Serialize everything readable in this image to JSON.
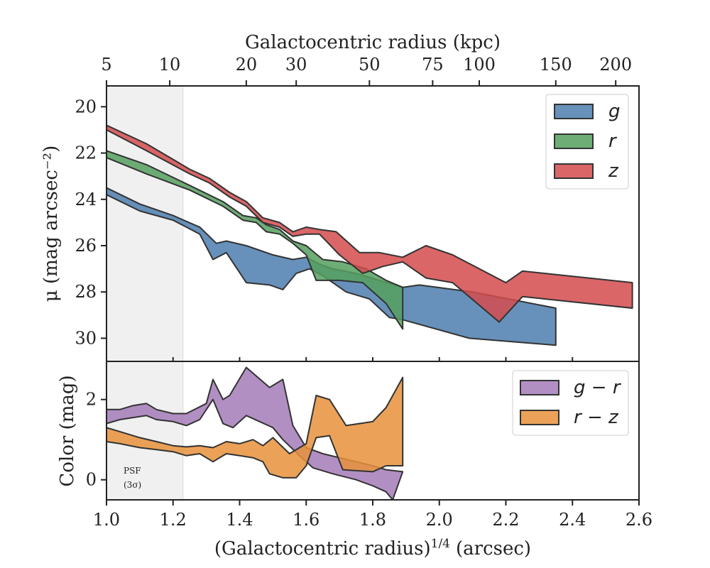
{
  "chart_data": [
    {
      "type": "area",
      "panel": "top",
      "ylabel": "μ (mag arcsec⁻²)",
      "top_xlabel": "Galactocentric radius (kpc)",
      "top_xticks": [
        {
          "label": "5",
          "x": 1.0
        },
        {
          "label": "10",
          "x": 1.19
        },
        {
          "label": "20",
          "x": 1.42
        },
        {
          "label": "30",
          "x": 1.57
        },
        {
          "label": "50",
          "x": 1.79
        },
        {
          "label": "75",
          "x": 1.98
        },
        {
          "label": "100",
          "x": 2.12
        },
        {
          "label": "150",
          "x": 2.35
        },
        {
          "label": "200",
          "x": 2.53
        }
      ],
      "xlim": [
        1.0,
        2.6
      ],
      "ylim": [
        31.0,
        19.1
      ],
      "yticks": [
        "20",
        "22",
        "24",
        "26",
        "28",
        "30"
      ],
      "ytick_values": [
        20,
        22,
        24,
        26,
        28,
        30
      ],
      "shaded_region": [
        1.0,
        1.23
      ],
      "legend_position": "top-right",
      "series": [
        {
          "name": "g",
          "color": "#4C7EAE",
          "upper": [
            [
              1.0,
              23.5
            ],
            [
              1.1,
              24.2
            ],
            [
              1.2,
              24.7
            ],
            [
              1.28,
              25.2
            ],
            [
              1.33,
              25.9
            ],
            [
              1.36,
              25.8
            ],
            [
              1.42,
              26.0
            ],
            [
              1.5,
              26.4
            ],
            [
              1.56,
              26.6
            ],
            [
              1.6,
              26.5
            ],
            [
              1.64,
              26.8
            ],
            [
              1.68,
              27.0
            ],
            [
              1.75,
              27.2
            ],
            [
              1.82,
              27.5
            ],
            [
              1.89,
              27.8
            ],
            [
              1.94,
              27.7
            ],
            [
              2.1,
              28.0
            ],
            [
              2.35,
              28.7
            ]
          ],
          "lower": [
            [
              1.0,
              23.8
            ],
            [
              1.1,
              24.5
            ],
            [
              1.2,
              24.9
            ],
            [
              1.28,
              25.5
            ],
            [
              1.32,
              26.6
            ],
            [
              1.36,
              26.3
            ],
            [
              1.42,
              27.6
            ],
            [
              1.49,
              27.7
            ],
            [
              1.53,
              27.9
            ],
            [
              1.57,
              27.2
            ],
            [
              1.61,
              27.0
            ],
            [
              1.65,
              27.3
            ],
            [
              1.68,
              27.6
            ],
            [
              1.72,
              28.0
            ],
            [
              1.79,
              28.3
            ],
            [
              1.85,
              29.1
            ],
            [
              1.89,
              29.2
            ],
            [
              2.09,
              30.0
            ],
            [
              2.35,
              30.3
            ]
          ]
        },
        {
          "name": "r",
          "color": "#55A05E",
          "upper": [
            [
              1.0,
              21.9
            ],
            [
              1.12,
              22.5
            ],
            [
              1.25,
              23.4
            ],
            [
              1.35,
              24.1
            ],
            [
              1.41,
              24.7
            ],
            [
              1.45,
              24.8
            ],
            [
              1.48,
              25.1
            ],
            [
              1.52,
              25.3
            ],
            [
              1.56,
              25.8
            ],
            [
              1.6,
              26.0
            ],
            [
              1.65,
              26.6
            ],
            [
              1.71,
              26.7
            ],
            [
              1.78,
              27.0
            ],
            [
              1.84,
              27.5
            ],
            [
              1.89,
              27.8
            ]
          ],
          "lower": [
            [
              1.0,
              22.2
            ],
            [
              1.12,
              22.9
            ],
            [
              1.25,
              23.6
            ],
            [
              1.35,
              24.3
            ],
            [
              1.41,
              24.9
            ],
            [
              1.45,
              25.0
            ],
            [
              1.48,
              25.4
            ],
            [
              1.52,
              25.5
            ],
            [
              1.56,
              25.9
            ],
            [
              1.6,
              26.4
            ],
            [
              1.63,
              27.5
            ],
            [
              1.7,
              27.5
            ],
            [
              1.77,
              27.6
            ],
            [
              1.84,
              28.5
            ],
            [
              1.89,
              29.6
            ]
          ]
        },
        {
          "name": "z",
          "color": "#D44B4E",
          "upper": [
            [
              1.0,
              20.8
            ],
            [
              1.12,
              21.6
            ],
            [
              1.25,
              22.7
            ],
            [
              1.31,
              23.1
            ],
            [
              1.37,
              23.7
            ],
            [
              1.42,
              24.1
            ],
            [
              1.47,
              24.8
            ],
            [
              1.52,
              25.0
            ],
            [
              1.56,
              25.4
            ],
            [
              1.6,
              25.2
            ],
            [
              1.64,
              25.3
            ],
            [
              1.69,
              25.4
            ],
            [
              1.76,
              26.3
            ],
            [
              1.82,
              26.3
            ],
            [
              1.89,
              26.5
            ],
            [
              1.96,
              26.0
            ],
            [
              2.04,
              26.4
            ],
            [
              2.2,
              27.6
            ],
            [
              2.25,
              27.1
            ],
            [
              2.58,
              27.6
            ]
          ],
          "lower": [
            [
              1.0,
              21.0
            ],
            [
              1.12,
              21.9
            ],
            [
              1.25,
              22.9
            ],
            [
              1.31,
              23.3
            ],
            [
              1.37,
              23.9
            ],
            [
              1.42,
              24.3
            ],
            [
              1.47,
              25.0
            ],
            [
              1.52,
              25.2
            ],
            [
              1.56,
              25.6
            ],
            [
              1.6,
              25.5
            ],
            [
              1.64,
              25.5
            ],
            [
              1.7,
              26.4
            ],
            [
              1.77,
              27.2
            ],
            [
              1.83,
              26.9
            ],
            [
              1.89,
              26.7
            ],
            [
              1.96,
              27.4
            ],
            [
              2.04,
              27.6
            ],
            [
              2.18,
              29.3
            ],
            [
              2.25,
              28.2
            ],
            [
              2.58,
              28.7
            ]
          ]
        }
      ]
    },
    {
      "type": "area",
      "panel": "bottom",
      "xlabel": "(Galactocentric radius)",
      "xlabel_sup": "1/4",
      "xlabel_suffix": "(arcsec)",
      "ylabel": "Color (mag)",
      "xlim": [
        1.0,
        2.6
      ],
      "ylim": [
        -0.5,
        2.95
      ],
      "xticks": [
        "1.0",
        "1.2",
        "1.4",
        "1.6",
        "1.8",
        "2.0",
        "2.2",
        "2.4",
        "2.6"
      ],
      "xtick_values": [
        1.0,
        1.2,
        1.4,
        1.6,
        1.8,
        2.0,
        2.2,
        2.4,
        2.6
      ],
      "yticks": [
        "0",
        "2"
      ],
      "ytick_values": [
        0,
        2
      ],
      "shaded_region": [
        1.0,
        1.23
      ],
      "annotation_line1": "PSF",
      "annotation_line2": "(3σ)",
      "legend_position": "top-right",
      "series": [
        {
          "name": "g − r",
          "color": "#A57BB8",
          "upper": [
            [
              1.0,
              1.75
            ],
            [
              1.04,
              1.75
            ],
            [
              1.08,
              1.85
            ],
            [
              1.12,
              1.9
            ],
            [
              1.15,
              1.75
            ],
            [
              1.2,
              1.65
            ],
            [
              1.24,
              1.65
            ],
            [
              1.3,
              1.9
            ],
            [
              1.32,
              2.5
            ],
            [
              1.35,
              2.0
            ],
            [
              1.37,
              2.1
            ],
            [
              1.42,
              2.8
            ],
            [
              1.49,
              2.3
            ],
            [
              1.53,
              2.5
            ],
            [
              1.56,
              1.35
            ],
            [
              1.6,
              0.8
            ],
            [
              1.65,
              0.65
            ],
            [
              1.7,
              0.55
            ],
            [
              1.75,
              0.45
            ],
            [
              1.8,
              0.35
            ],
            [
              1.84,
              0.25
            ],
            [
              1.89,
              0.2
            ]
          ],
          "lower": [
            [
              1.0,
              1.4
            ],
            [
              1.04,
              1.5
            ],
            [
              1.08,
              1.55
            ],
            [
              1.12,
              1.6
            ],
            [
              1.15,
              1.5
            ],
            [
              1.2,
              1.45
            ],
            [
              1.24,
              1.35
            ],
            [
              1.28,
              1.5
            ],
            [
              1.32,
              2.0
            ],
            [
              1.35,
              1.4
            ],
            [
              1.38,
              1.3
            ],
            [
              1.42,
              1.6
            ],
            [
              1.46,
              1.45
            ],
            [
              1.5,
              1.3
            ],
            [
              1.53,
              1.0
            ],
            [
              1.58,
              0.6
            ],
            [
              1.62,
              0.3
            ],
            [
              1.68,
              0.15
            ],
            [
              1.75,
              0.0
            ],
            [
              1.8,
              -0.15
            ],
            [
              1.84,
              -0.3
            ],
            [
              1.86,
              -0.5
            ]
          ]
        },
        {
          "name": "r − z",
          "color": "#E8923B",
          "upper": [
            [
              1.0,
              1.3
            ],
            [
              1.04,
              1.2
            ],
            [
              1.1,
              1.05
            ],
            [
              1.15,
              0.95
            ],
            [
              1.2,
              0.85
            ],
            [
              1.24,
              0.82
            ],
            [
              1.28,
              0.85
            ],
            [
              1.32,
              0.8
            ],
            [
              1.36,
              0.95
            ],
            [
              1.4,
              0.9
            ],
            [
              1.44,
              1.0
            ],
            [
              1.47,
              0.85
            ],
            [
              1.5,
              1.05
            ],
            [
              1.55,
              0.65
            ],
            [
              1.6,
              0.9
            ],
            [
              1.63,
              2.1
            ],
            [
              1.67,
              2.0
            ],
            [
              1.72,
              1.35
            ],
            [
              1.8,
              1.45
            ],
            [
              1.84,
              1.8
            ],
            [
              1.89,
              2.55
            ]
          ],
          "lower": [
            [
              1.0,
              0.95
            ],
            [
              1.04,
              0.9
            ],
            [
              1.1,
              0.8
            ],
            [
              1.15,
              0.75
            ],
            [
              1.2,
              0.7
            ],
            [
              1.24,
              0.6
            ],
            [
              1.28,
              0.65
            ],
            [
              1.32,
              0.45
            ],
            [
              1.36,
              0.65
            ],
            [
              1.4,
              0.6
            ],
            [
              1.44,
              0.55
            ],
            [
              1.47,
              0.45
            ],
            [
              1.49,
              0.15
            ],
            [
              1.53,
              0.05
            ],
            [
              1.57,
              0.05
            ],
            [
              1.6,
              0.35
            ],
            [
              1.63,
              1.05
            ],
            [
              1.67,
              1.1
            ],
            [
              1.71,
              0.25
            ],
            [
              1.8,
              0.2
            ],
            [
              1.84,
              0.35
            ],
            [
              1.89,
              0.35
            ]
          ]
        }
      ]
    }
  ]
}
